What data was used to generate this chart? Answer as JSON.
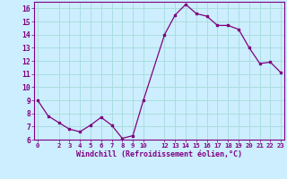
{
  "x_values": [
    0,
    1,
    2,
    3,
    4,
    5,
    6,
    7,
    8,
    9,
    10,
    12,
    13,
    14,
    15,
    16,
    17,
    18,
    19,
    20,
    21,
    22,
    23
  ],
  "y_values": [
    9.0,
    7.8,
    7.3,
    6.8,
    6.6,
    7.1,
    7.7,
    7.1,
    6.1,
    6.3,
    9.0,
    14.0,
    15.5,
    16.3,
    15.6,
    15.4,
    14.7,
    14.7,
    14.4,
    13.0,
    11.8,
    11.9,
    11.1
  ],
  "line_color": "#800080",
  "marker_color": "#800080",
  "bg_color": "#cceeff",
  "grid_color": "#aadddd",
  "xlabel": "Windchill (Refroidissement éolien,°C)",
  "xlabel_color": "#800080",
  "tick_color": "#800080",
  "ylim": [
    6,
    16.5
  ],
  "xlim": [
    -0.3,
    23.3
  ],
  "yticks": [
    6,
    7,
    8,
    9,
    10,
    11,
    12,
    13,
    14,
    15,
    16
  ],
  "xticks": [
    0,
    2,
    3,
    4,
    5,
    6,
    7,
    8,
    9,
    10,
    12,
    13,
    14,
    15,
    16,
    17,
    18,
    19,
    20,
    21,
    22,
    23
  ]
}
